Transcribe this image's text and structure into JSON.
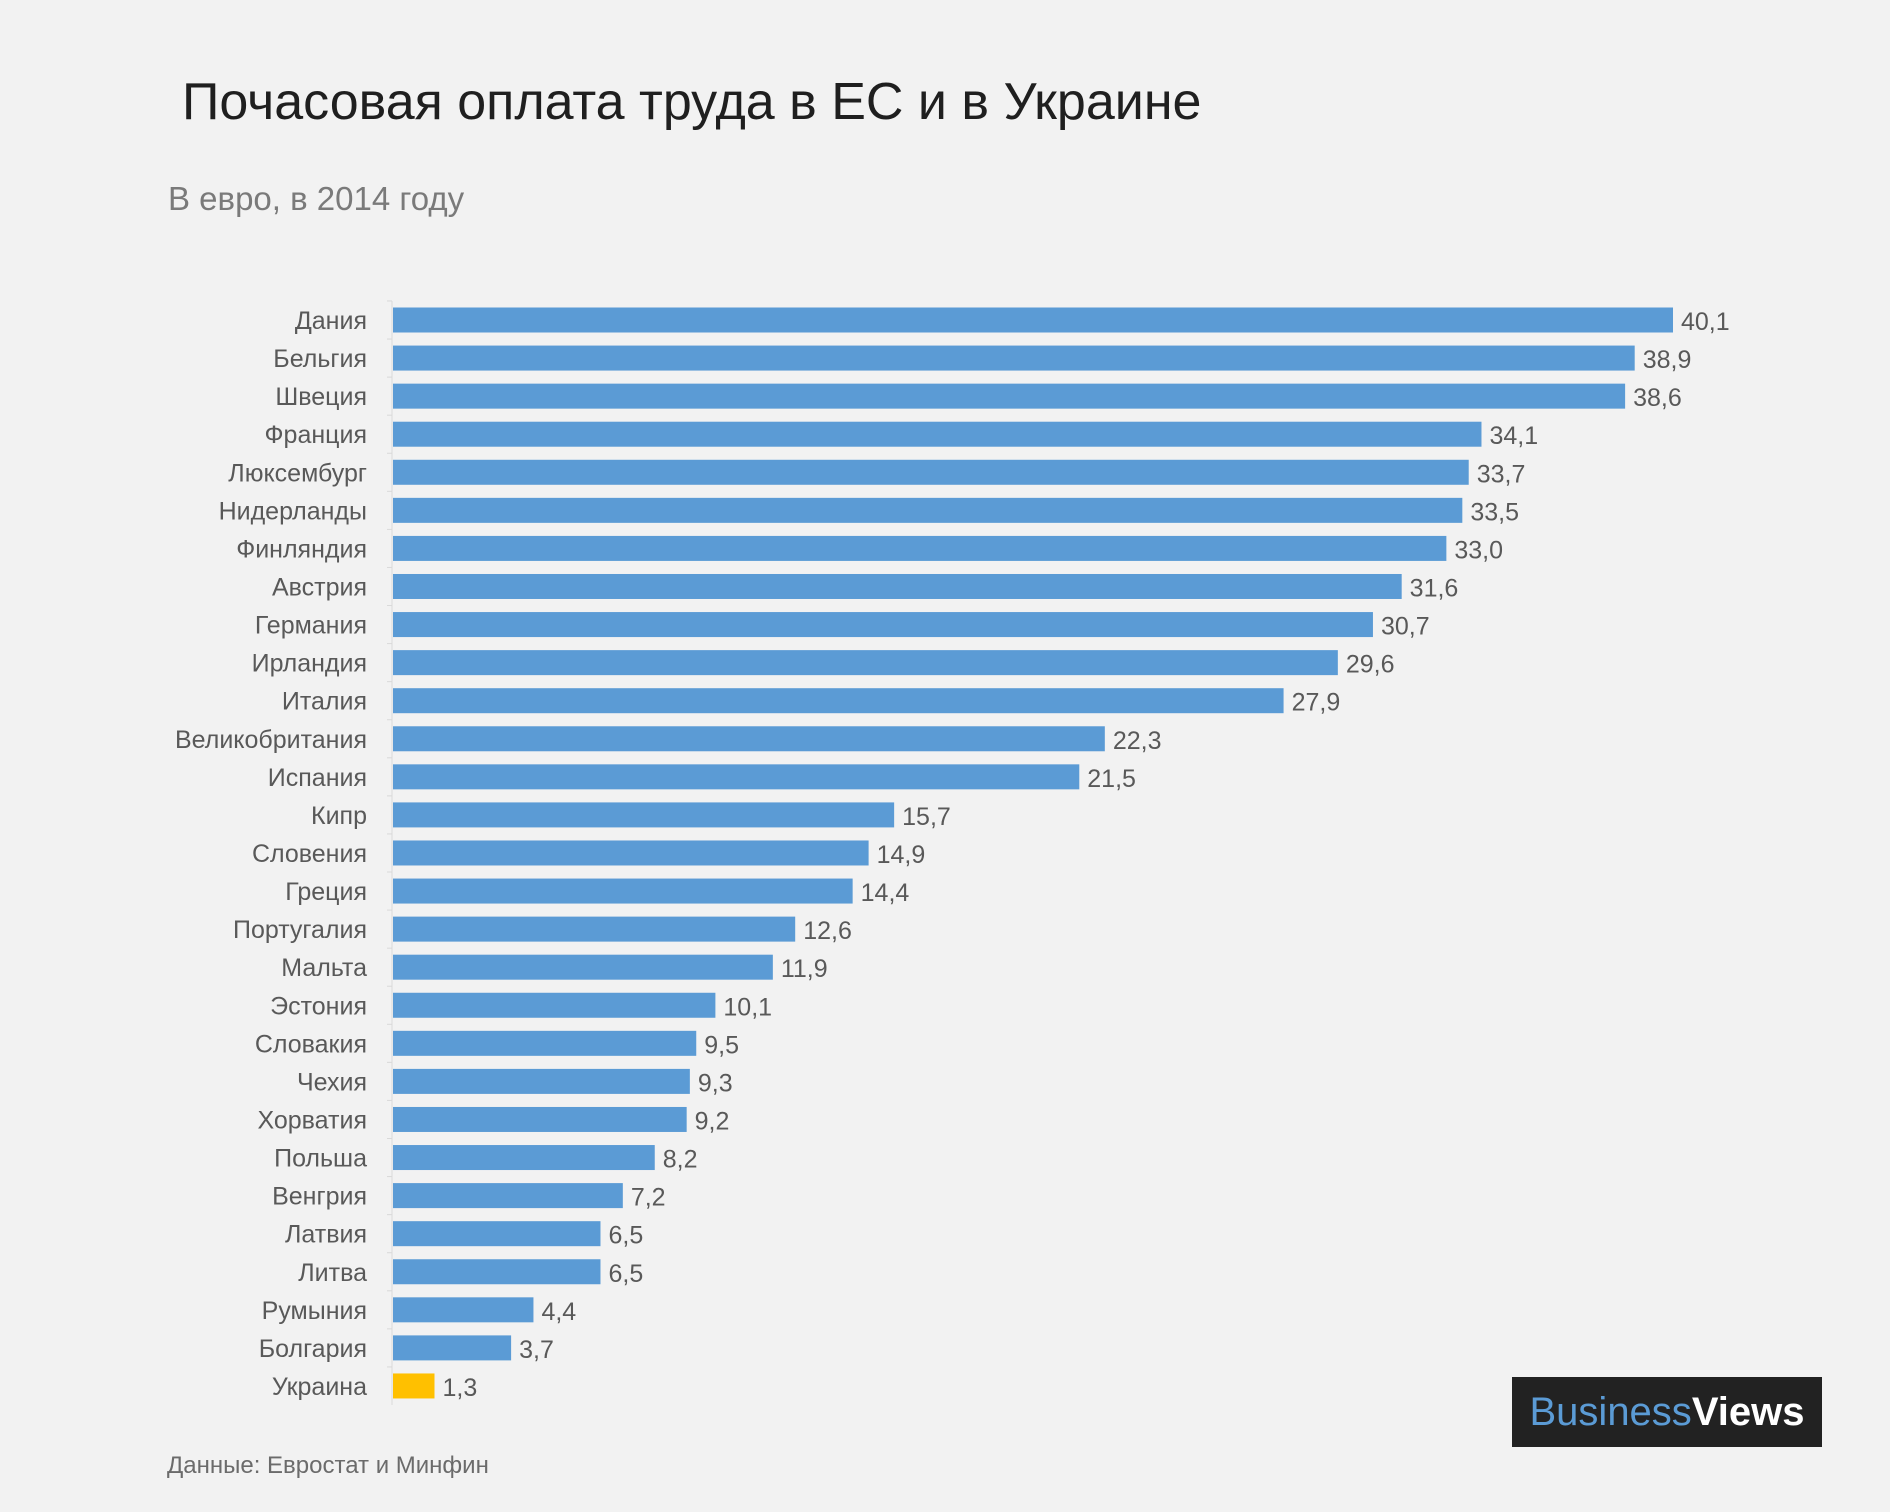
{
  "title": "Почасовая оплата труда в ЕС и в Украине",
  "subtitle": "В евро, в 2014 году",
  "source": "Данные: Евростат и Минфин",
  "logo": {
    "part1": "Business",
    "part2": "Views"
  },
  "colors": {
    "bar": "#5b9bd5",
    "highlight": "#ffc000",
    "axis": "#d9d9d9",
    "label": "#595959"
  },
  "chart_data": {
    "type": "bar",
    "orientation": "horizontal",
    "categories": [
      "Дания",
      "Бельгия",
      "Швеция",
      "Франция",
      "Люксембург",
      "Нидерланды",
      "Финляндия",
      "Австрия",
      "Германия",
      "Ирландия",
      "Италия",
      "Великобритания",
      "Испания",
      "Кипр",
      "Словения",
      "Греция",
      "Португалия",
      "Мальта",
      "Эстония",
      "Словакия",
      "Чехия",
      "Хорватия",
      "Польша",
      "Венгрия",
      "Латвия",
      "Литва",
      "Румыния",
      "Болгария",
      "Украина"
    ],
    "values": [
      40.1,
      38.9,
      38.6,
      34.1,
      33.7,
      33.5,
      33.0,
      31.6,
      30.7,
      29.6,
      27.9,
      22.3,
      21.5,
      15.7,
      14.9,
      14.4,
      12.6,
      11.9,
      10.1,
      9.5,
      9.3,
      9.2,
      8.2,
      7.2,
      6.5,
      6.5,
      4.4,
      3.7,
      1.3
    ],
    "value_labels": [
      "40,1",
      "38,9",
      "38,6",
      "34,1",
      "33,7",
      "33,5",
      "33,0",
      "31,6",
      "30,7",
      "29,6",
      "27,9",
      "22,3",
      "21,5",
      "15,7",
      "14,9",
      "14,4",
      "12,6",
      "11,9",
      "10,1",
      "9,5",
      "9,3",
      "9,2",
      "8,2",
      "7,2",
      "6,5",
      "6,5",
      "4,4",
      "3,7",
      "1,3"
    ],
    "highlight": "Украина",
    "xlim": [
      0,
      40.1
    ],
    "grid": false,
    "legend": "none"
  }
}
